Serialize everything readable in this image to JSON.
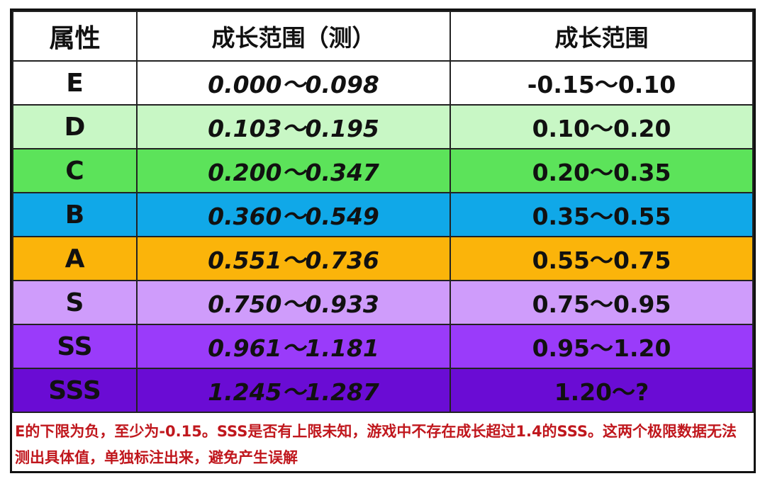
{
  "table": {
    "headers": [
      "属性",
      "成长范围（测）",
      "成长范围"
    ],
    "rows": [
      {
        "grade": "E",
        "measured": "0.000～0.098",
        "range": "-0.15～0.10",
        "color": "#ffffff"
      },
      {
        "grade": "D",
        "measured": "0.103～0.195",
        "range": "0.10～0.20",
        "color": "#c8f7c5"
      },
      {
        "grade": "C",
        "measured": "0.200～0.347",
        "range": "0.20～0.35",
        "color": "#5ce35a"
      },
      {
        "grade": "B",
        "measured": "0.360～0.549",
        "range": "0.35～0.55",
        "color": "#10a8e8"
      },
      {
        "grade": "A",
        "measured": "0.551～0.736",
        "range": "0.55～0.75",
        "color": "#fbb40a"
      },
      {
        "grade": "S",
        "measured": "0.750～0.933",
        "range": "0.75～0.95",
        "color": "#cf9cfb"
      },
      {
        "grade": "SS",
        "measured": "0.961～1.181",
        "range": "0.95～1.20",
        "color": "#9a3bfa"
      },
      {
        "grade": "SSS",
        "measured": "1.245～1.287",
        "range": "1.20～?",
        "color": "#6a0cd4"
      }
    ]
  },
  "note": "E的下限为负，至少为-0.15。SSS是否有上限未知，游戏中不存在成长超过1.4的SSS。这两个极限数据无法测出具体值，单独标注出来，避免产生误解"
}
